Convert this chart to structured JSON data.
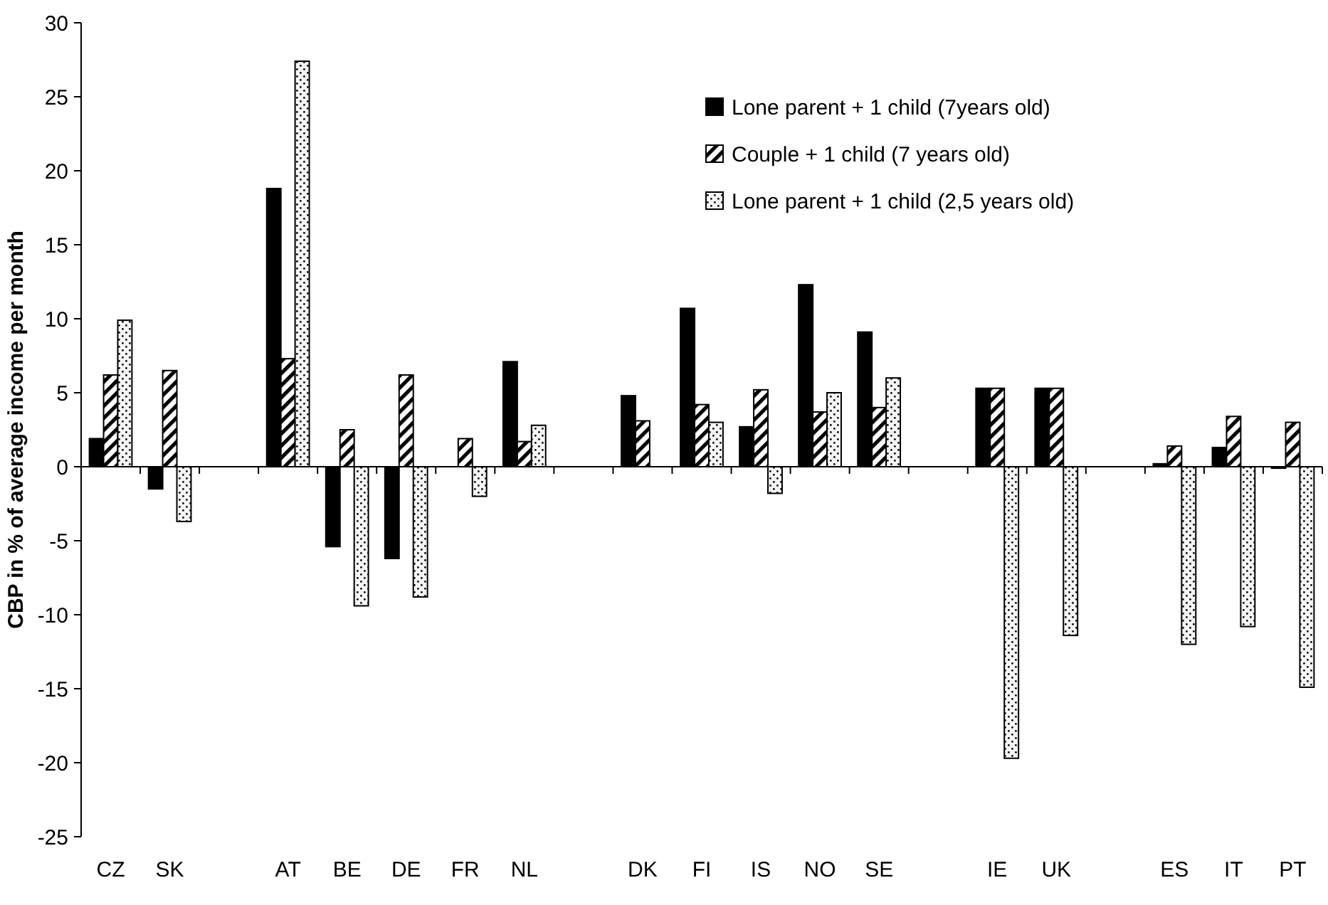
{
  "chart_data": {
    "type": "bar",
    "ylabel": "CBP in % of average income per month",
    "categories": [
      "CZ",
      "SK",
      null,
      "AT",
      "BE",
      "DE",
      "FR",
      "NL",
      null,
      "DK",
      "FI",
      "IS",
      "NO",
      "SE",
      null,
      "IE",
      "UK",
      null,
      "ES",
      "IT",
      "PT"
    ],
    "series": [
      {
        "name": "Lone parent + 1 child (7years old)",
        "color": "#000000",
        "values": [
          1.9,
          -1.5,
          null,
          18.8,
          -5.4,
          -6.2,
          0,
          7.1,
          null,
          4.8,
          10.7,
          2.7,
          12.3,
          9.1,
          null,
          5.3,
          5.3,
          null,
          0.2,
          1.3,
          -0.1
        ]
      },
      {
        "name": "Couple + 1 child (7 years old)",
        "color": "#000000",
        "values": [
          6.2,
          6.5,
          null,
          7.3,
          2.5,
          6.2,
          1.9,
          1.7,
          null,
          3.1,
          4.2,
          5.2,
          3.7,
          4.0,
          null,
          5.3,
          5.3,
          null,
          1.4,
          3.4,
          3.0
        ]
      },
      {
        "name": "Lone parent + 1 child (2,5 years old)",
        "color": "#000000",
        "values": [
          9.9,
          -3.7,
          null,
          27.4,
          -9.4,
          -8.8,
          -2.0,
          2.8,
          null,
          0,
          3.0,
          -1.8,
          5.0,
          6.0,
          null,
          -19.7,
          -11.4,
          null,
          -12.0,
          -10.8,
          -14.9
        ]
      }
    ],
    "ylim": [
      -25,
      30
    ],
    "yticks": [
      -25,
      -20,
      -15,
      -10,
      -5,
      0,
      5,
      10,
      15,
      20,
      25,
      30
    ],
    "legend": "top right"
  }
}
